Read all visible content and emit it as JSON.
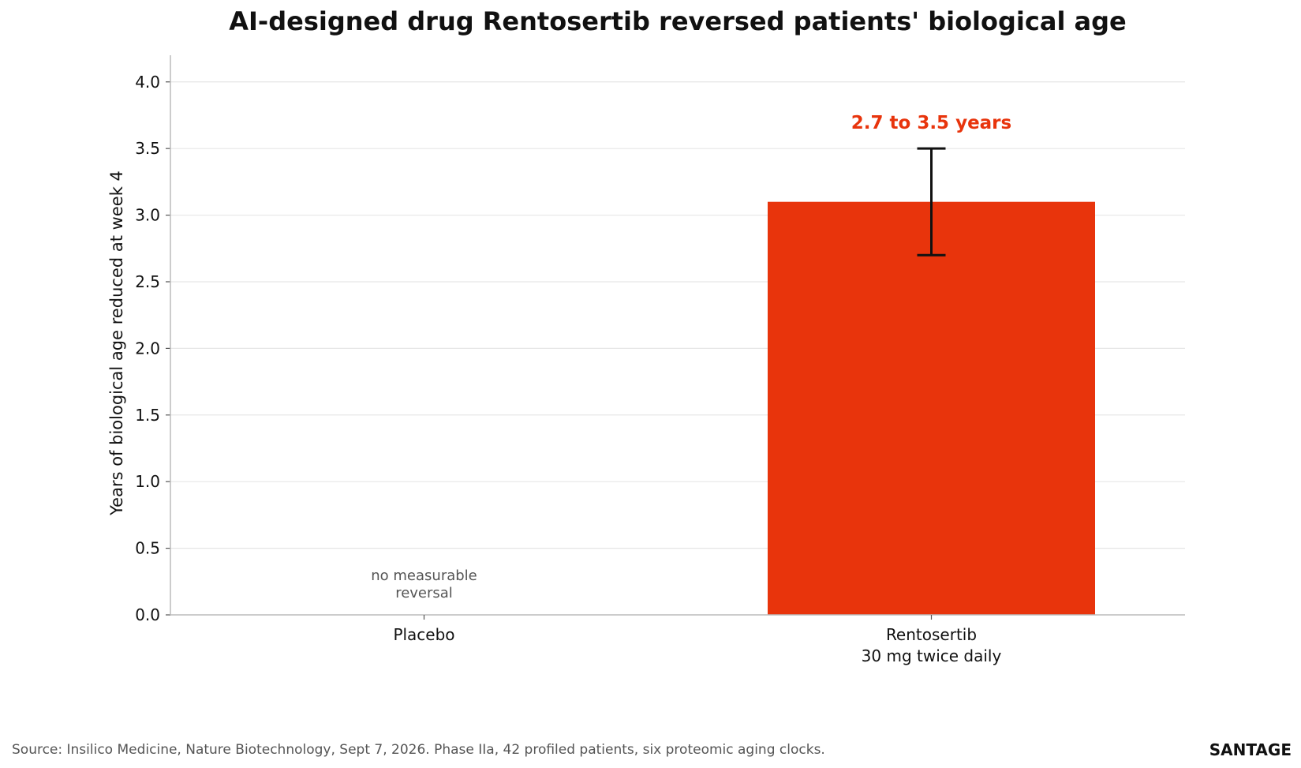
{
  "chart_data": {
    "type": "bar",
    "title": "AI-designed drug Rentosertib reversed patients' biological age",
    "ylabel": "Years of biological age reduced at week 4",
    "xlabel": "",
    "ylim": [
      0,
      4.2
    ],
    "yticks": [
      "0.0",
      "0.5",
      "1.0",
      "1.5",
      "2.0",
      "2.5",
      "3.0",
      "3.5",
      "4.0"
    ],
    "grid": true,
    "categories": [
      {
        "label_lines": [
          "Placebo"
        ],
        "value": 0,
        "annotation_lines": [
          "no measurable",
          "reversal"
        ]
      },
      {
        "label_lines": [
          "Rentosertib",
          "30 mg twice daily"
        ],
        "value": 3.1,
        "error_low": 2.7,
        "error_high": 3.5,
        "annotation": "2.7 to 3.5 years"
      }
    ],
    "colors": {
      "bar": "#E8340C",
      "annotation": "#E8340C",
      "note": "#555555",
      "errorbar": "#111111",
      "grid": "#e6e6e6"
    }
  },
  "footer": {
    "source": "Source: Insilico Medicine, Nature Biotechnology, Sept 7, 2026. Phase IIa, 42 profiled patients, six proteomic aging clocks.",
    "brand": "SANTAGE"
  }
}
